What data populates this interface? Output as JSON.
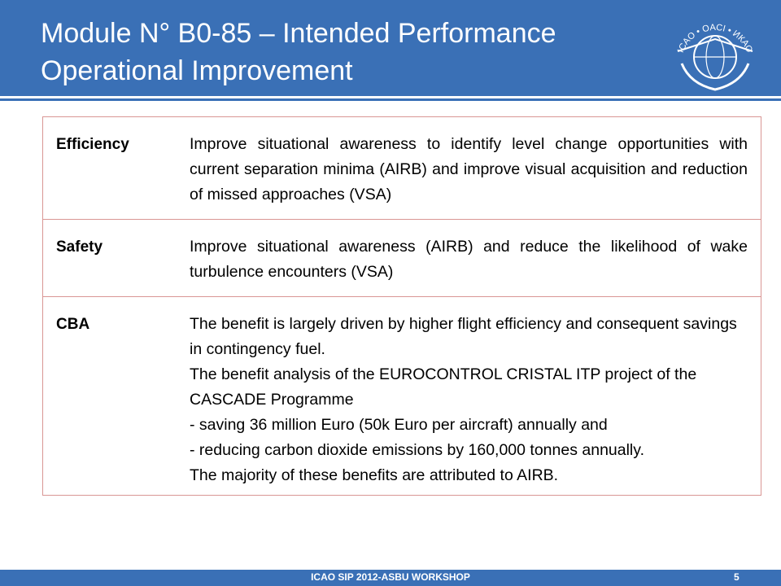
{
  "header": {
    "title_lines": [
      "Module N° B0-85 – Intended Performance",
      "Operational Improvement"
    ],
    "logo_text": "ICAO • OACI • ИКАО"
  },
  "table": {
    "rows": [
      {
        "label": "Efficiency",
        "paragraphs": [
          "Improve situational awareness to identify level change opportunities with current separation minima (AIRB)  and improve visual acquisition and reduction of missed approaches (VSA)"
        ]
      },
      {
        "label": "Safety",
        "paragraphs": [
          "Improve situational awareness (AIRB) and reduce the likelihood of wake turbulence encounters (VSA)"
        ]
      },
      {
        "label": "CBA",
        "paragraphs": [
          "The benefit is largely driven by higher flight efficiency and consequent savings in contingency fuel.",
          "The benefit analysis of the EUROCONTROL CRISTAL ITP project of the CASCADE Programme",
          "- saving 36 million Euro (50k Euro per aircraft) annually and",
          "- reducing carbon dioxide emissions by 160,000 tonnes annually.",
          "The majority of these benefits are attributed to AIRB."
        ]
      }
    ]
  },
  "footer": {
    "text": "ICAO SIP 2012-ASBU WORKSHOP",
    "page": "5"
  }
}
